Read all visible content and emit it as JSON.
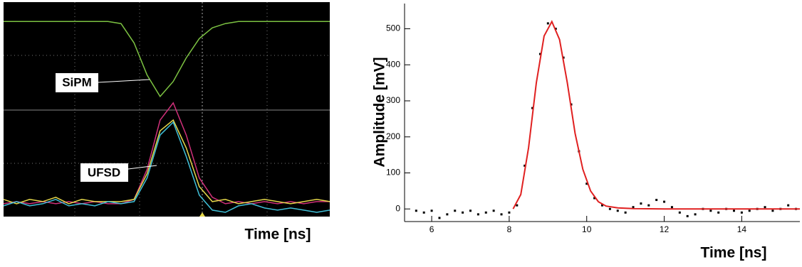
{
  "chart_data": [
    {
      "type": "line",
      "xlabel": "Time [ns]",
      "annotations": [
        {
          "text": "SiPM"
        },
        {
          "text": "UFSD"
        }
      ],
      "xlim": [
        0,
        100
      ],
      "ylim": [
        0,
        100
      ],
      "x": [
        0,
        4,
        8,
        12,
        16,
        20,
        24,
        28,
        32,
        36,
        40,
        44,
        48,
        52,
        56,
        60,
        64,
        68,
        72,
        76,
        80,
        84,
        88,
        92,
        96,
        100
      ],
      "series": [
        {
          "color": "#7cc242",
          "values": [
            91,
            91,
            91,
            91,
            91,
            91,
            91,
            91,
            91,
            90,
            81,
            66,
            56,
            63,
            74,
            83,
            88,
            90,
            91,
            91,
            91,
            91,
            91,
            91,
            91,
            91
          ]
        },
        {
          "color": "#d0307a",
          "values": [
            6,
            7,
            6,
            7,
            6,
            7,
            6,
            7,
            6,
            6,
            8,
            22,
            45,
            53,
            38,
            18,
            9,
            6,
            7,
            6,
            7,
            6,
            7,
            6,
            7,
            7
          ]
        },
        {
          "color": "#e6d84a",
          "values": [
            8,
            6,
            8,
            7,
            9,
            6,
            8,
            7,
            7,
            7,
            8,
            20,
            40,
            45,
            32,
            14,
            7,
            8,
            6,
            7,
            8,
            7,
            6,
            7,
            8,
            7
          ]
        },
        {
          "color": "#40c0d8",
          "values": [
            5,
            7,
            5,
            6,
            8,
            5,
            6,
            5,
            7,
            6,
            7,
            18,
            38,
            44,
            28,
            10,
            3,
            2,
            5,
            6,
            4,
            3,
            4,
            3,
            2,
            3
          ]
        }
      ]
    },
    {
      "type": "scatter",
      "xlabel": "Time [ns]",
      "ylabel": "Amplitude [mV]",
      "xlim": [
        5.3,
        15.5
      ],
      "ylim": [
        -35,
        570
      ],
      "xticks": [
        6,
        8,
        10,
        12,
        14
      ],
      "yticks": [
        0,
        100,
        200,
        300,
        400,
        500
      ],
      "series": [
        {
          "type": "scatter",
          "color": "#000000",
          "x": [
            5.6,
            5.8,
            6.0,
            6.2,
            6.4,
            6.6,
            6.8,
            7.0,
            7.2,
            7.4,
            7.6,
            7.8,
            8.0,
            8.2,
            8.4,
            8.6,
            8.8,
            9.0,
            9.2,
            9.4,
            9.6,
            9.8,
            10.0,
            10.2,
            10.4,
            10.6,
            10.8,
            11.0,
            11.2,
            11.4,
            11.6,
            11.8,
            12.0,
            12.2,
            12.4,
            12.6,
            12.8,
            13.0,
            13.2,
            13.4,
            13.6,
            13.8,
            14.0,
            14.2,
            14.4,
            14.6,
            14.8,
            15.0,
            15.2,
            15.4
          ],
          "values": [
            -5,
            -10,
            -5,
            -25,
            -15,
            -5,
            -10,
            -5,
            -15,
            -10,
            -5,
            -15,
            -10,
            10,
            120,
            280,
            430,
            515,
            500,
            420,
            290,
            160,
            70,
            30,
            10,
            0,
            -5,
            -10,
            5,
            15,
            10,
            25,
            20,
            5,
            -10,
            -20,
            -15,
            0,
            -5,
            -10,
            0,
            -5,
            -10,
            -5,
            0,
            5,
            -5,
            0,
            10,
            0
          ]
        },
        {
          "type": "line",
          "color": "#e02020",
          "x": [
            8.1,
            8.3,
            8.5,
            8.7,
            8.9,
            9.1,
            9.3,
            9.5,
            9.7,
            9.9,
            10.1,
            10.3,
            10.5,
            10.8,
            11.2,
            12,
            13,
            14,
            15.5
          ],
          "values": [
            0,
            40,
            170,
            350,
            480,
            520,
            470,
            350,
            210,
            110,
            50,
            20,
            8,
            3,
            1,
            0,
            0,
            0,
            0
          ]
        }
      ]
    }
  ]
}
